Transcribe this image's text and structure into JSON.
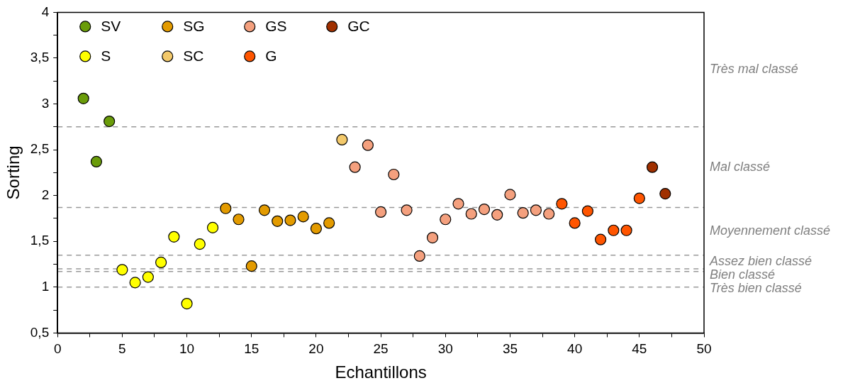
{
  "chart_data": {
    "type": "scatter",
    "xlabel": "Echantillons",
    "ylabel": "Sorting",
    "xlim": [
      0,
      50
    ],
    "xticks": [
      0,
      {
        "value": 2.5,
        "label": null
      },
      5,
      {
        "value": 7.5,
        "label": null
      },
      10,
      {
        "value": 12.5,
        "label": null
      },
      15,
      {
        "value": 17.5,
        "label": null
      },
      20,
      {
        "value": 22.5,
        "label": null
      },
      25,
      {
        "value": 27.5,
        "label": null
      },
      30,
      {
        "value": 32.5,
        "label": null
      },
      35,
      {
        "value": 37.5,
        "label": null
      },
      40,
      {
        "value": 42.5,
        "label": null
      },
      45,
      {
        "value": 47.5,
        "label": null
      },
      50
    ],
    "ylim": [
      0.5,
      4
    ],
    "yticks": [
      {
        "value": 0.5,
        "label": "0,5"
      },
      {
        "value": 0.75,
        "label": null
      },
      1,
      {
        "value": 1.25,
        "label": null
      },
      {
        "value": 1.5,
        "label": "1,5"
      },
      {
        "value": 1.75,
        "label": null
      },
      2,
      {
        "value": 2.25,
        "label": null
      },
      {
        "value": 2.5,
        "label": "2,5"
      },
      {
        "value": 2.75,
        "label": null
      },
      3,
      {
        "value": 3.25,
        "label": null
      },
      {
        "value": 3.5,
        "label": "3,5"
      },
      {
        "value": 3.75,
        "label": null
      },
      4
    ],
    "grid": false,
    "legend": "top left",
    "marker": "circle",
    "series": [
      {
        "name": "SV",
        "color": "#6a9c0a",
        "x": [
          2,
          3,
          4
        ],
        "values": [
          3.06,
          2.37,
          2.81
        ]
      },
      {
        "name": "S",
        "color": "#ffff00",
        "x": [
          5,
          6,
          7,
          8,
          9,
          10,
          11,
          12
        ],
        "values": [
          1.19,
          1.05,
          1.11,
          1.27,
          1.55,
          0.82,
          1.47,
          1.65
        ]
      },
      {
        "name": "SG",
        "color": "#e39b00",
        "x": [
          13,
          14,
          15,
          16,
          17,
          18,
          19,
          20,
          21
        ],
        "values": [
          1.86,
          1.74,
          1.23,
          1.84,
          1.72,
          1.73,
          1.77,
          1.64,
          1.7
        ]
      },
      {
        "name": "SC",
        "color": "#f3c96b",
        "x": [
          22
        ],
        "values": [
          2.61
        ]
      },
      {
        "name": "GS",
        "color": "#f4a07e",
        "x": [
          23,
          24,
          25,
          26,
          27,
          28,
          29,
          30,
          31,
          32,
          33,
          34,
          35,
          36,
          37,
          38
        ],
        "values": [
          2.31,
          2.55,
          1.82,
          2.23,
          1.84,
          1.34,
          1.54,
          1.74,
          1.91,
          1.8,
          1.85,
          1.79,
          2.01,
          1.81,
          1.84,
          1.8
        ]
      },
      {
        "name": "G",
        "color": "#ff5500",
        "x": [
          39,
          40,
          41,
          42,
          43,
          44,
          45
        ],
        "values": [
          1.91,
          1.7,
          1.83,
          1.52,
          1.62,
          1.62,
          1.97
        ]
      },
      {
        "name": "GC",
        "color": "#a03000",
        "x": [
          46,
          47
        ],
        "values": [
          2.31,
          2.02
        ]
      }
    ],
    "ref_lines": [
      {
        "axis": "y",
        "value": 2.75,
        "color": "#999999",
        "line_style": "dashed"
      },
      {
        "axis": "y",
        "value": 1.87,
        "color": "#999999",
        "line_style": "dashed"
      },
      {
        "axis": "y",
        "value": 1.35,
        "color": "#999999",
        "line_style": "dashed"
      },
      {
        "axis": "y",
        "value": 1.2,
        "color": "#999999",
        "line_style": "dashed"
      },
      {
        "axis": "y",
        "value": 1.17,
        "color": "#999999",
        "line_style": "dashed"
      },
      {
        "axis": "y",
        "value": 1.0,
        "color": "#999999",
        "line_style": "dashed"
      }
    ],
    "annotations": [
      "Très mal classé",
      "Mal classé",
      "Moyennement classé",
      "Assez bien classé",
      "Bien classé",
      "Très bien classé"
    ]
  }
}
